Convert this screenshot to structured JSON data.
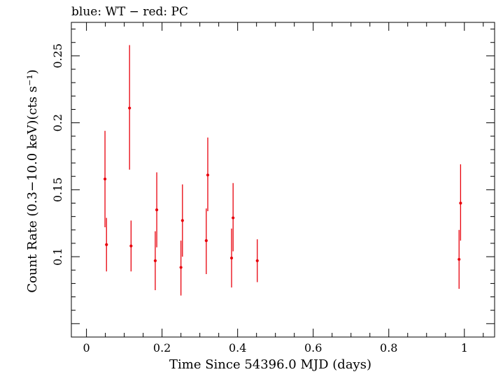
{
  "chart_data": {
    "type": "scatter",
    "title": "blue: WT − red: PC",
    "xlabel": "Time Since 54396.0 MJD (days)",
    "ylabel": "Count Rate (0.3−10.0 keV)(cts s⁻¹)",
    "xlim": [
      -0.04,
      1.08
    ],
    "ylim": [
      0.04,
      0.275
    ],
    "xticks": [
      0,
      0.2,
      0.4,
      0.6,
      0.8,
      1
    ],
    "xtick_labels": [
      "0",
      "0.2",
      "0.4",
      "0.6",
      "0.8",
      "1"
    ],
    "yticks": [
      0.1,
      0.15,
      0.2,
      0.25
    ],
    "ytick_labels": [
      "0.1",
      "0.15",
      "0.2",
      "0.25"
    ],
    "grid": false,
    "series": [
      {
        "color": "#e8000b",
        "points": [
          {
            "x": 0.049,
            "y": 0.158,
            "ylo": 0.122,
            "yhi": 0.194
          },
          {
            "x": 0.053,
            "y": 0.109,
            "ylo": 0.089,
            "yhi": 0.129
          },
          {
            "x": 0.114,
            "y": 0.211,
            "ylo": 0.165,
            "yhi": 0.258
          },
          {
            "x": 0.118,
            "y": 0.108,
            "ylo": 0.089,
            "yhi": 0.127
          },
          {
            "x": 0.182,
            "y": 0.097,
            "ylo": 0.075,
            "yhi": 0.119
          },
          {
            "x": 0.186,
            "y": 0.135,
            "ylo": 0.107,
            "yhi": 0.163
          },
          {
            "x": 0.25,
            "y": 0.092,
            "ylo": 0.071,
            "yhi": 0.112
          },
          {
            "x": 0.254,
            "y": 0.127,
            "ylo": 0.1,
            "yhi": 0.154
          },
          {
            "x": 0.317,
            "y": 0.112,
            "ylo": 0.087,
            "yhi": 0.136
          },
          {
            "x": 0.321,
            "y": 0.161,
            "ylo": 0.134,
            "yhi": 0.189
          },
          {
            "x": 0.384,
            "y": 0.099,
            "ylo": 0.077,
            "yhi": 0.121
          },
          {
            "x": 0.388,
            "y": 0.129,
            "ylo": 0.104,
            "yhi": 0.155
          },
          {
            "x": 0.452,
            "y": 0.097,
            "ylo": 0.081,
            "yhi": 0.113
          },
          {
            "x": 0.986,
            "y": 0.098,
            "ylo": 0.076,
            "yhi": 0.12
          },
          {
            "x": 0.99,
            "y": 0.14,
            "ylo": 0.112,
            "yhi": 0.169
          }
        ]
      }
    ]
  }
}
